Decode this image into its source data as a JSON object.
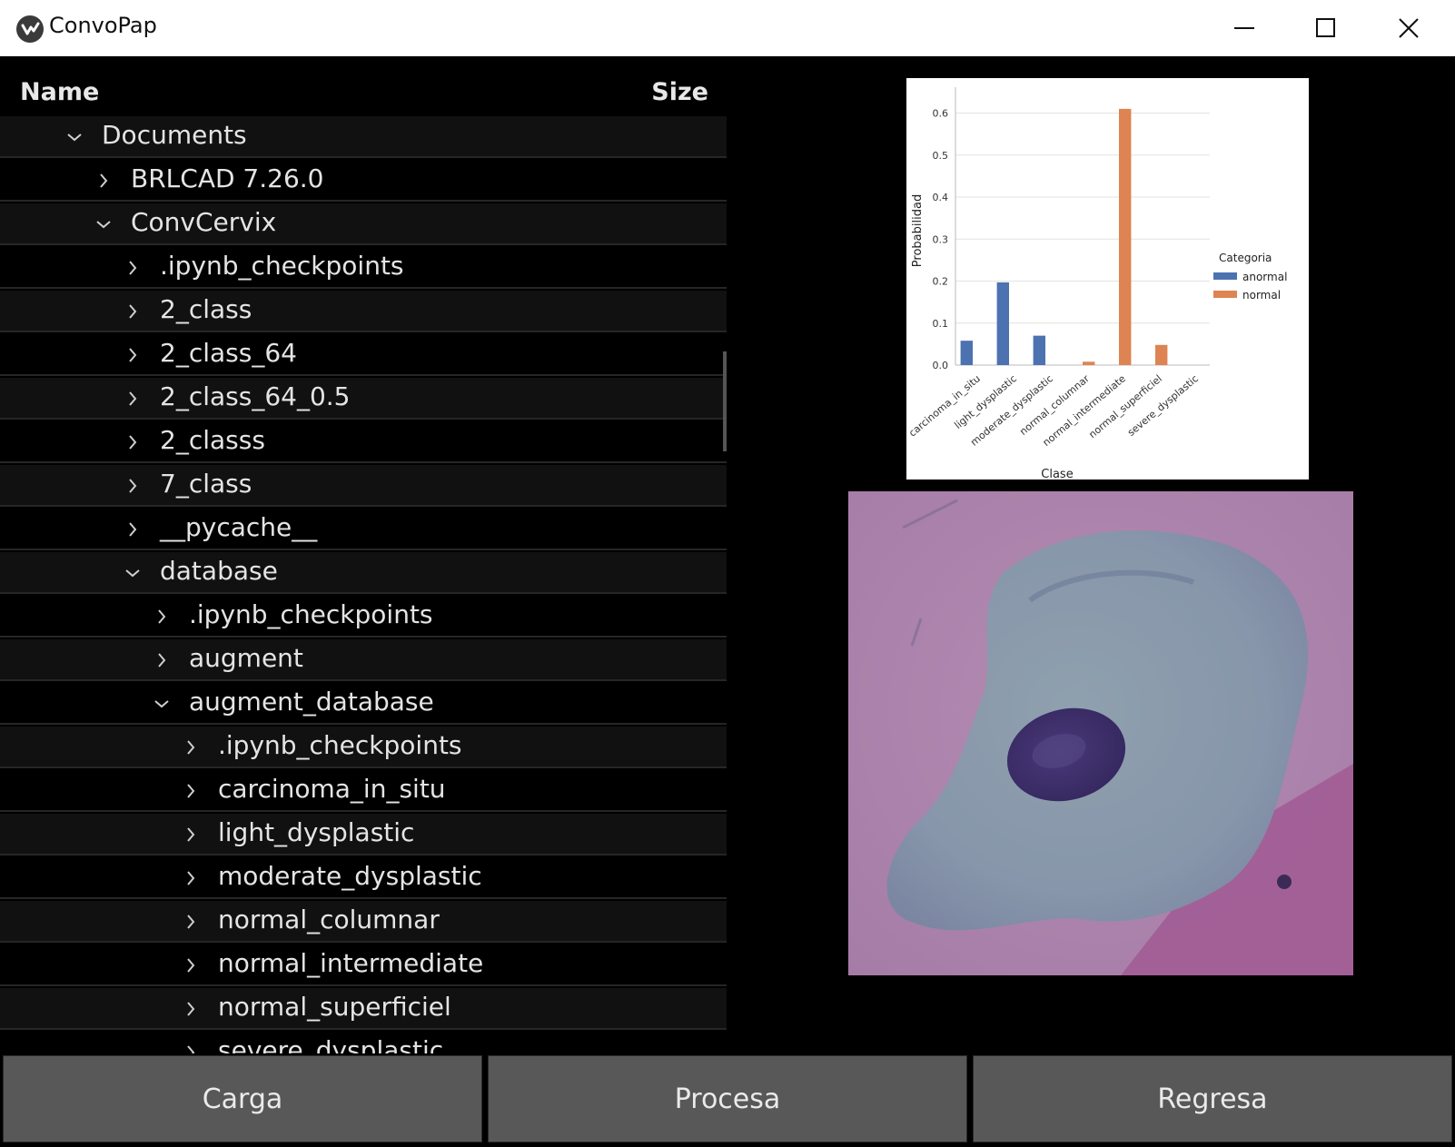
{
  "window": {
    "title": "ConvoPap",
    "minimize_icon": "minimize-icon",
    "maximize_icon": "maximize-icon",
    "close_icon": "close-icon"
  },
  "tree": {
    "header": {
      "name": "Name",
      "size": "Size"
    },
    "rows": [
      {
        "label": "Documents",
        "level": 1,
        "expanded": true
      },
      {
        "label": "BRLCAD 7.26.0",
        "level": 2,
        "expanded": false
      },
      {
        "label": "ConvCervix",
        "level": 2,
        "expanded": true
      },
      {
        "label": ".ipynb_checkpoints",
        "level": 3,
        "expanded": false
      },
      {
        "label": "2_class",
        "level": 3,
        "expanded": false
      },
      {
        "label": "2_class_64",
        "level": 3,
        "expanded": false
      },
      {
        "label": "2_class_64_0.5",
        "level": 3,
        "expanded": false
      },
      {
        "label": "2_classs",
        "level": 3,
        "expanded": false
      },
      {
        "label": "7_class",
        "level": 3,
        "expanded": false
      },
      {
        "label": "__pycache__",
        "level": 3,
        "expanded": false
      },
      {
        "label": "database",
        "level": 3,
        "expanded": true
      },
      {
        "label": ".ipynb_checkpoints",
        "level": 4,
        "expanded": false
      },
      {
        "label": "augment",
        "level": 4,
        "expanded": false
      },
      {
        "label": "augment_database",
        "level": 4,
        "expanded": true
      },
      {
        "label": ".ipynb_checkpoints",
        "level": 5,
        "expanded": false
      },
      {
        "label": "carcinoma_in_situ",
        "level": 5,
        "expanded": false
      },
      {
        "label": "light_dysplastic",
        "level": 5,
        "expanded": false
      },
      {
        "label": "moderate_dysplastic",
        "level": 5,
        "expanded": false
      },
      {
        "label": "normal_columnar",
        "level": 5,
        "expanded": false
      },
      {
        "label": "normal_intermediate",
        "level": 5,
        "expanded": false
      },
      {
        "label": "normal_superficiel",
        "level": 5,
        "expanded": false
      },
      {
        "label": "severe_dysplastic",
        "level": 5,
        "expanded": false
      }
    ]
  },
  "chart_data": {
    "type": "bar",
    "categories": [
      "carcinoma_in_situ",
      "light_dysplastic",
      "moderate_dysplastic",
      "normal_columnar",
      "normal_intermediate",
      "normal_superficiel",
      "severe_dysplastic"
    ],
    "series": [
      {
        "name": "anormal",
        "color": "#4c72b0",
        "values": [
          0.058,
          0.197,
          0.07,
          0,
          0,
          0,
          0
        ]
      },
      {
        "name": "normal",
        "color": "#dd8452",
        "values": [
          0,
          0,
          0,
          0.008,
          0.61,
          0.048,
          0
        ]
      }
    ],
    "xlabel": "Clase",
    "ylabel": "Probabilidad",
    "yticks": [
      "0.0",
      "0.1",
      "0.2",
      "0.3",
      "0.4",
      "0.5",
      "0.6"
    ],
    "ylim": [
      0,
      0.64
    ],
    "legend_title": "Categoria",
    "legend_position": "right",
    "grid": true
  },
  "buttons": {
    "carga": "Carga",
    "procesa": "Procesa",
    "regresa": "Regresa"
  }
}
